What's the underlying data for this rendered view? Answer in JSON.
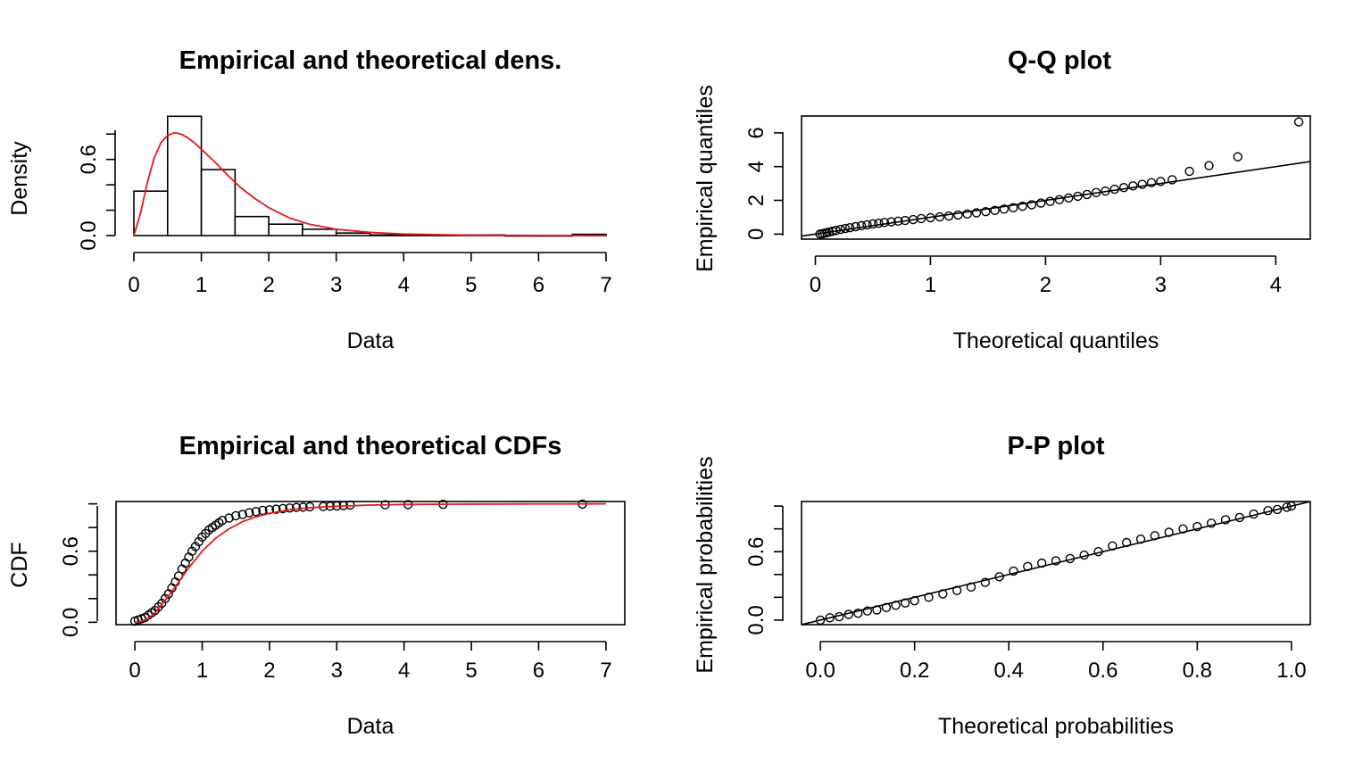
{
  "chart_data": [
    {
      "id": "density",
      "type": "bar",
      "title": "Empirical and theoretical dens.",
      "xlabel": "Data",
      "ylabel": "Density",
      "xlim": [
        0,
        7
      ],
      "ylim": [
        0,
        0.9
      ],
      "xticks": [
        0,
        1,
        2,
        3,
        4,
        5,
        6,
        7
      ],
      "yticks": [
        0.0,
        0.6
      ],
      "ytick_labels": [
        "0.0",
        "0.6"
      ],
      "bin_edges": [
        0,
        0.5,
        1,
        1.5,
        2,
        2.5,
        3,
        3.5,
        4,
        4.5,
        5,
        5.5,
        6,
        6.5,
        7
      ],
      "values": [
        0.35,
        0.94,
        0.52,
        0.15,
        0.09,
        0.05,
        0.02,
        0.005,
        0.005,
        0.005,
        0.005,
        0.0,
        0.0,
        0.01
      ],
      "curve": {
        "name": "theoretical density",
        "color": "#e31a1c",
        "x": [
          0,
          0.1,
          0.2,
          0.3,
          0.4,
          0.5,
          0.6,
          0.7,
          0.8,
          0.9,
          1.0,
          1.2,
          1.4,
          1.6,
          1.8,
          2.0,
          2.3,
          2.6,
          3.0,
          3.5,
          4.0,
          5.0,
          6.0,
          7.0
        ],
        "y": [
          0,
          0.18,
          0.42,
          0.61,
          0.73,
          0.79,
          0.81,
          0.8,
          0.77,
          0.73,
          0.68,
          0.58,
          0.47,
          0.37,
          0.29,
          0.22,
          0.14,
          0.09,
          0.05,
          0.025,
          0.012,
          0.003,
          0.001,
          0.0
        ]
      }
    },
    {
      "id": "qq",
      "type": "scatter",
      "title": "Q-Q plot",
      "xlabel": "Theoretical quantiles",
      "ylabel": "Empirical quantiles",
      "xlim": [
        -0.12,
        4.3
      ],
      "ylim": [
        -0.3,
        7.0
      ],
      "xticks": [
        0,
        1,
        2,
        3,
        4
      ],
      "yticks": [
        0,
        2,
        4,
        6
      ],
      "ytick_labels": [
        "0",
        "2",
        "4",
        "6"
      ],
      "x": [
        0.04,
        0.06,
        0.08,
        0.1,
        0.12,
        0.15,
        0.18,
        0.22,
        0.26,
        0.3,
        0.35,
        0.4,
        0.45,
        0.5,
        0.55,
        0.6,
        0.66,
        0.72,
        0.78,
        0.85,
        0.92,
        1.0,
        1.08,
        1.16,
        1.24,
        1.32,
        1.4,
        1.48,
        1.56,
        1.64,
        1.72,
        1.8,
        1.88,
        1.96,
        2.04,
        2.12,
        2.2,
        2.28,
        2.36,
        2.44,
        2.52,
        2.6,
        2.68,
        2.76,
        2.84,
        2.92,
        3.0,
        3.1,
        3.25,
        3.42,
        3.67,
        4.2
      ],
      "y": [
        0.0,
        0.02,
        0.05,
        0.08,
        0.12,
        0.17,
        0.22,
        0.28,
        0.33,
        0.38,
        0.44,
        0.5,
        0.55,
        0.6,
        0.64,
        0.69,
        0.73,
        0.77,
        0.81,
        0.86,
        0.92,
        0.97,
        1.02,
        1.07,
        1.13,
        1.19,
        1.26,
        1.33,
        1.4,
        1.48,
        1.56,
        1.65,
        1.74,
        1.84,
        1.94,
        2.04,
        2.14,
        2.24,
        2.35,
        2.46,
        2.55,
        2.66,
        2.76,
        2.86,
        2.95,
        3.05,
        3.12,
        3.22,
        3.72,
        4.06,
        4.58,
        6.65
      ],
      "reference_line": {
        "x": [
          -0.12,
          4.3
        ],
        "y": [
          -0.12,
          4.3
        ]
      }
    },
    {
      "id": "cdf",
      "type": "scatter",
      "title": "Empirical and theoretical CDFs",
      "xlabel": "Data",
      "ylabel": "CDF",
      "xlim": [
        -0.28,
        7.28
      ],
      "ylim": [
        -0.02,
        1.02
      ],
      "xticks": [
        0,
        1,
        2,
        3,
        4,
        5,
        6,
        7
      ],
      "yticks": [
        0.0,
        0.6
      ],
      "ytick_labels": [
        "0.0",
        "0.6"
      ],
      "x": [
        0.0,
        0.05,
        0.1,
        0.15,
        0.2,
        0.25,
        0.3,
        0.35,
        0.4,
        0.45,
        0.5,
        0.55,
        0.6,
        0.65,
        0.7,
        0.75,
        0.8,
        0.85,
        0.9,
        0.95,
        1.0,
        1.05,
        1.1,
        1.15,
        1.2,
        1.25,
        1.3,
        1.4,
        1.5,
        1.6,
        1.7,
        1.8,
        1.9,
        2.0,
        2.1,
        2.2,
        2.3,
        2.4,
        2.5,
        2.6,
        2.8,
        2.9,
        3.0,
        3.1,
        3.2,
        3.72,
        4.06,
        4.58,
        6.65
      ],
      "y": [
        0.01,
        0.02,
        0.03,
        0.04,
        0.06,
        0.08,
        0.1,
        0.13,
        0.16,
        0.2,
        0.24,
        0.29,
        0.34,
        0.39,
        0.45,
        0.5,
        0.55,
        0.6,
        0.64,
        0.68,
        0.72,
        0.75,
        0.78,
        0.8,
        0.82,
        0.84,
        0.86,
        0.88,
        0.9,
        0.91,
        0.925,
        0.935,
        0.945,
        0.95,
        0.955,
        0.96,
        0.965,
        0.97,
        0.972,
        0.975,
        0.978,
        0.98,
        0.983,
        0.986,
        0.99,
        0.992,
        0.994,
        0.996,
        0.998
      ],
      "curve": {
        "name": "theoretical CDF",
        "color": "#e31a1c",
        "x": [
          0,
          0.1,
          0.2,
          0.3,
          0.4,
          0.5,
          0.6,
          0.7,
          0.8,
          0.9,
          1.0,
          1.2,
          1.4,
          1.6,
          1.8,
          2.0,
          2.3,
          2.6,
          3.0,
          3.5,
          4.0,
          5.0,
          6.0,
          7.0
        ],
        "y": [
          0.0,
          0.01,
          0.03,
          0.08,
          0.15,
          0.22,
          0.3,
          0.38,
          0.46,
          0.53,
          0.6,
          0.71,
          0.79,
          0.85,
          0.89,
          0.92,
          0.95,
          0.967,
          0.98,
          0.99,
          0.995,
          0.998,
          0.999,
          1.0
        ]
      }
    },
    {
      "id": "pp",
      "type": "scatter",
      "title": "P-P plot",
      "xlabel": "Theoretical probabilities",
      "ylabel": "Empirical probabilities",
      "xlim": [
        -0.04,
        1.04
      ],
      "ylim": [
        -0.04,
        1.04
      ],
      "xticks": [
        0.0,
        0.2,
        0.4,
        0.6,
        0.8,
        1.0
      ],
      "xtick_labels": [
        "0.0",
        "0.2",
        "0.4",
        "0.6",
        "0.8",
        "1.0"
      ],
      "yticks": [
        0.0,
        0.6
      ],
      "ytick_labels": [
        "0.0",
        "0.6"
      ],
      "x": [
        0.0,
        0.02,
        0.04,
        0.06,
        0.08,
        0.1,
        0.12,
        0.14,
        0.16,
        0.18,
        0.2,
        0.23,
        0.26,
        0.29,
        0.32,
        0.35,
        0.38,
        0.41,
        0.44,
        0.47,
        0.5,
        0.53,
        0.56,
        0.59,
        0.62,
        0.65,
        0.68,
        0.71,
        0.74,
        0.77,
        0.8,
        0.83,
        0.86,
        0.89,
        0.92,
        0.95,
        0.97,
        0.99,
        1.0
      ],
      "y": [
        0.0,
        0.02,
        0.03,
        0.05,
        0.06,
        0.08,
        0.09,
        0.11,
        0.13,
        0.15,
        0.17,
        0.2,
        0.23,
        0.26,
        0.29,
        0.33,
        0.38,
        0.43,
        0.47,
        0.5,
        0.52,
        0.54,
        0.57,
        0.6,
        0.65,
        0.68,
        0.71,
        0.74,
        0.77,
        0.8,
        0.82,
        0.85,
        0.88,
        0.9,
        0.93,
        0.96,
        0.97,
        0.99,
        1.0
      ],
      "reference_line": {
        "x": [
          -0.04,
          1.04
        ],
        "y": [
          -0.04,
          1.04
        ]
      }
    }
  ]
}
